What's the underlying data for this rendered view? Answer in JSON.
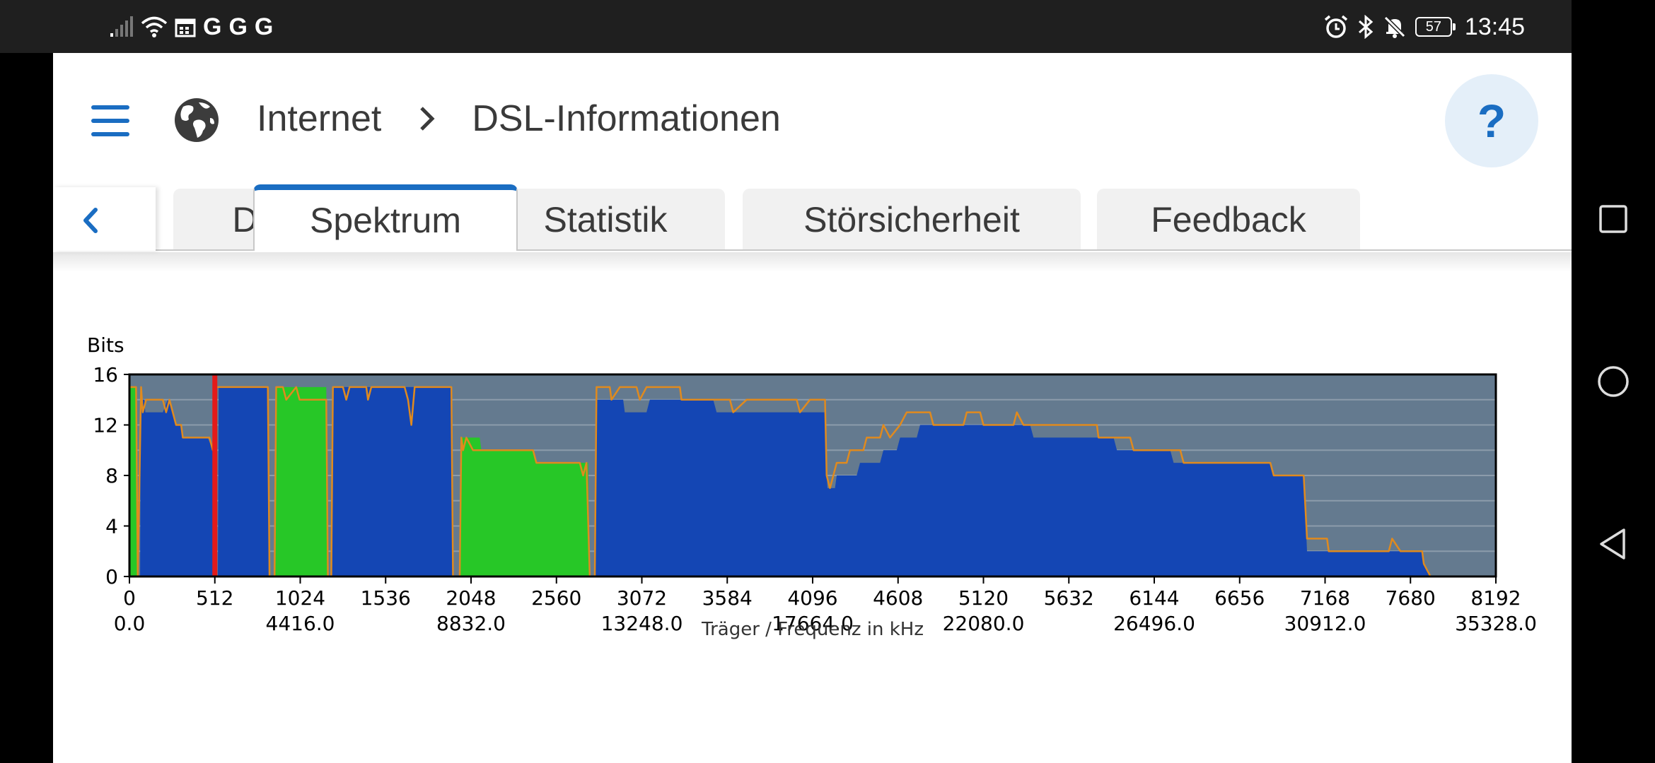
{
  "status_bar": {
    "left_icons": [
      "signal-icon",
      "wifi-icon",
      "calendar-icon"
    ],
    "g_labels": [
      "G",
      "G",
      "G"
    ],
    "right_icons": [
      "alarm-icon",
      "bluetooth-icon",
      "mute-icon"
    ],
    "battery": "57",
    "time": "13:45"
  },
  "header": {
    "breadcrumb_root": "Internet",
    "breadcrumb_current": "DSL-Informationen",
    "help_label": "?"
  },
  "tabs": [
    {
      "label": "DSL",
      "active": false
    },
    {
      "label": "Spektrum",
      "active": true
    },
    {
      "label": "Statistik",
      "active": false
    },
    {
      "label": "Störsicherheit",
      "active": false
    },
    {
      "label": "Feedback",
      "active": false
    }
  ],
  "chart_data": {
    "type": "area",
    "ylabel": "Bits",
    "xlabel": "Träger / Frequenz in kHz",
    "xlim": [
      0,
      8192
    ],
    "ylim": [
      0,
      16
    ],
    "yticks": [
      0,
      4,
      8,
      12,
      16
    ],
    "xticks": [
      {
        "carrier": "0",
        "freq": "0.0"
      },
      {
        "carrier": "512",
        "freq": ""
      },
      {
        "carrier": "1024",
        "freq": "4416.0"
      },
      {
        "carrier": "1536",
        "freq": ""
      },
      {
        "carrier": "2048",
        "freq": "8832.0"
      },
      {
        "carrier": "2560",
        "freq": ""
      },
      {
        "carrier": "3072",
        "freq": "13248.0"
      },
      {
        "carrier": "3584",
        "freq": ""
      },
      {
        "carrier": "4096",
        "freq": "17664.0"
      },
      {
        "carrier": "4608",
        "freq": ""
      },
      {
        "carrier": "5120",
        "freq": "22080.0"
      },
      {
        "carrier": "5632",
        "freq": ""
      },
      {
        "carrier": "6144",
        "freq": "26496.0"
      },
      {
        "carrier": "6656",
        "freq": ""
      },
      {
        "carrier": "7168",
        "freq": "30912.0"
      },
      {
        "carrier": "7680",
        "freq": ""
      },
      {
        "carrier": "8192",
        "freq": "35328.0"
      }
    ],
    "grid": "horizontal",
    "colors": {
      "background": "#647a8f",
      "downstream": "#1446b4",
      "upstream": "#27c727",
      "max_line": "#e08a1e",
      "marker": "#e31a1a",
      "grid": "#8c9cab"
    },
    "marker_carrier": 512,
    "series": [
      {
        "name": "",
        "color": "#1446b4",
        "role": "downstream",
        "points": [
          [
            64,
            0
          ],
          [
            68,
            14
          ],
          [
            90,
            14
          ],
          [
            95,
            13
          ],
          [
            200,
            13
          ],
          [
            230,
            14
          ],
          [
            260,
            13
          ],
          [
            285,
            12
          ],
          [
            310,
            12
          ],
          [
            315,
            11
          ],
          [
            470,
            11
          ],
          [
            500,
            10
          ],
          [
            510,
            10
          ],
          [
            515,
            0
          ],
          [
            530,
            0
          ],
          [
            535,
            15
          ],
          [
            830,
            15
          ],
          [
            835,
            0
          ],
          [
            1215,
            0
          ],
          [
            1220,
            15
          ],
          [
            1930,
            15
          ],
          [
            1935,
            0
          ],
          [
            2790,
            0
          ],
          [
            2795,
            14
          ],
          [
            2960,
            14
          ],
          [
            2970,
            13
          ],
          [
            3100,
            13
          ],
          [
            3120,
            14
          ],
          [
            3500,
            14
          ],
          [
            3520,
            13
          ],
          [
            4170,
            13
          ],
          [
            4175,
            9
          ],
          [
            4185,
            7
          ],
          [
            4230,
            7
          ],
          [
            4240,
            8
          ],
          [
            4360,
            8
          ],
          [
            4380,
            9
          ],
          [
            4500,
            9
          ],
          [
            4520,
            10
          ],
          [
            4600,
            10
          ],
          [
            4620,
            11
          ],
          [
            4720,
            11
          ],
          [
            4740,
            12
          ],
          [
            5400,
            12
          ],
          [
            5420,
            11
          ],
          [
            5900,
            11
          ],
          [
            5920,
            10
          ],
          [
            6240,
            10
          ],
          [
            6260,
            9
          ],
          [
            6840,
            9
          ],
          [
            6860,
            8
          ],
          [
            7040,
            8
          ],
          [
            7060,
            2
          ],
          [
            7750,
            2
          ],
          [
            7760,
            1
          ],
          [
            7800,
            0
          ]
        ]
      },
      {
        "name": "",
        "color": "#27c727",
        "role": "upstream",
        "points": [
          [
            0,
            0
          ],
          [
            5,
            15
          ],
          [
            40,
            15
          ],
          [
            48,
            0
          ],
          [
            870,
            0
          ],
          [
            875,
            15
          ],
          [
            1180,
            15
          ],
          [
            1190,
            0
          ],
          [
            1980,
            0
          ],
          [
            1985,
            11
          ],
          [
            2100,
            11
          ],
          [
            2110,
            10
          ],
          [
            2420,
            10
          ],
          [
            2440,
            9
          ],
          [
            2750,
            9
          ],
          [
            2760,
            0
          ]
        ]
      },
      {
        "name": "",
        "color": "#e08a1e",
        "role": "max",
        "points": [
          [
            0,
            15
          ],
          [
            40,
            15
          ],
          [
            50,
            0
          ],
          [
            70,
            15
          ],
          [
            80,
            13
          ],
          [
            100,
            14
          ],
          [
            200,
            14
          ],
          [
            220,
            13
          ],
          [
            240,
            14
          ],
          [
            280,
            12
          ],
          [
            310,
            12
          ],
          [
            320,
            11
          ],
          [
            480,
            11
          ],
          [
            500,
            10
          ],
          [
            515,
            15
          ],
          [
            830,
            15
          ],
          [
            840,
            0
          ],
          [
            870,
            0
          ],
          [
            880,
            15
          ],
          [
            920,
            15
          ],
          [
            940,
            14
          ],
          [
            1000,
            15
          ],
          [
            1020,
            14
          ],
          [
            1180,
            14
          ],
          [
            1190,
            0
          ],
          [
            1210,
            0
          ],
          [
            1220,
            15
          ],
          [
            1280,
            15
          ],
          [
            1300,
            14
          ],
          [
            1320,
            15
          ],
          [
            1420,
            15
          ],
          [
            1430,
            14
          ],
          [
            1450,
            15
          ],
          [
            1650,
            15
          ],
          [
            1670,
            14
          ],
          [
            1690,
            12
          ],
          [
            1710,
            15
          ],
          [
            1930,
            15
          ],
          [
            1940,
            0
          ],
          [
            1980,
            0
          ],
          [
            1990,
            11
          ],
          [
            2000,
            10
          ],
          [
            2020,
            11
          ],
          [
            2060,
            10
          ],
          [
            2420,
            10
          ],
          [
            2440,
            9
          ],
          [
            2700,
            9
          ],
          [
            2720,
            8
          ],
          [
            2740,
            9
          ],
          [
            2760,
            0
          ],
          [
            2790,
            0
          ],
          [
            2800,
            15
          ],
          [
            2880,
            15
          ],
          [
            2890,
            14
          ],
          [
            2940,
            15
          ],
          [
            3040,
            15
          ],
          [
            3060,
            14
          ],
          [
            3100,
            15
          ],
          [
            3300,
            15
          ],
          [
            3310,
            14
          ],
          [
            3600,
            14
          ],
          [
            3620,
            13
          ],
          [
            3700,
            14
          ],
          [
            4000,
            14
          ],
          [
            4020,
            13
          ],
          [
            4080,
            14
          ],
          [
            4170,
            14
          ],
          [
            4180,
            8
          ],
          [
            4200,
            7
          ],
          [
            4240,
            9
          ],
          [
            4300,
            9
          ],
          [
            4320,
            10
          ],
          [
            4400,
            10
          ],
          [
            4420,
            11
          ],
          [
            4500,
            11
          ],
          [
            4520,
            12
          ],
          [
            4560,
            11
          ],
          [
            4620,
            12
          ],
          [
            4660,
            13
          ],
          [
            4800,
            13
          ],
          [
            4820,
            12
          ],
          [
            5000,
            12
          ],
          [
            5020,
            13
          ],
          [
            5100,
            13
          ],
          [
            5120,
            12
          ],
          [
            5300,
            12
          ],
          [
            5320,
            13
          ],
          [
            5360,
            12
          ],
          [
            5800,
            12
          ],
          [
            5810,
            11
          ],
          [
            6000,
            11
          ],
          [
            6020,
            10
          ],
          [
            6300,
            10
          ],
          [
            6320,
            9
          ],
          [
            6840,
            9
          ],
          [
            6860,
            8
          ],
          [
            7040,
            8
          ],
          [
            7060,
            3
          ],
          [
            7180,
            3
          ],
          [
            7190,
            2
          ],
          [
            7550,
            2
          ],
          [
            7570,
            3
          ],
          [
            7620,
            2
          ],
          [
            7750,
            2
          ],
          [
            7760,
            1
          ],
          [
            7800,
            0
          ]
        ]
      }
    ]
  }
}
